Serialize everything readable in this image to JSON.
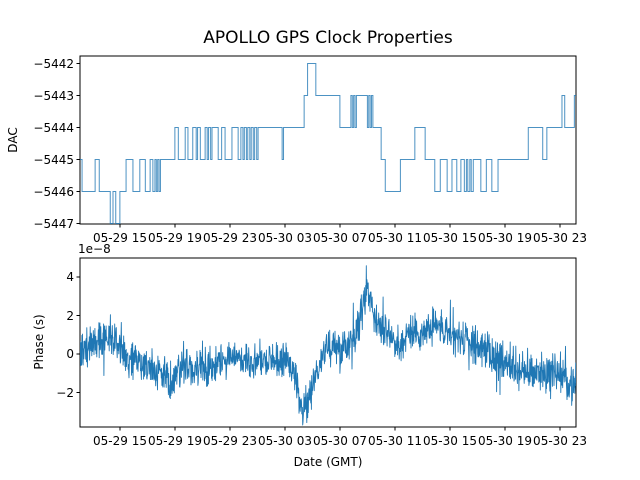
{
  "figure": {
    "title": "APOLLO GPS Clock Properties",
    "line_color": "#1f77b4",
    "background": "#ffffff"
  },
  "x_axis": {
    "label": "Date (GMT)",
    "tick_labels": [
      "05-29 15",
      "05-29 19",
      "05-29 23",
      "05-30 03",
      "05-30 07",
      "05-30 11",
      "05-30 15",
      "05-30 19",
      "05-30 23"
    ],
    "tick_hours": [
      2.909,
      6.909,
      10.909,
      14.909,
      18.909,
      22.909,
      26.909,
      30.909,
      34.909
    ],
    "range_hours": [
      0,
      36.07
    ],
    "hours_origin": "05-29 12:05"
  },
  "chart_data": [
    {
      "type": "line",
      "subtype": "step-post",
      "name": "dac",
      "ylabel": "DAC",
      "ytick_labels": [
        "−5442",
        "−5443",
        "−5444",
        "−5445",
        "−5446",
        "−5447"
      ],
      "yticks": [
        -5442,
        -5443,
        -5444,
        -5445,
        -5446,
        -5447
      ],
      "ylim": [
        -5447.02,
        -5441.77
      ],
      "steps": [
        [
          0,
          -5445
        ],
        [
          0.15,
          -5446
        ],
        [
          1.1,
          -5445
        ],
        [
          1.4,
          -5446
        ],
        [
          2.2,
          -5447
        ],
        [
          2.4,
          -5446
        ],
        [
          2.6,
          -5447
        ],
        [
          2.9,
          -5446
        ],
        [
          3.35,
          -5445
        ],
        [
          3.85,
          -5446
        ],
        [
          4.35,
          -5445
        ],
        [
          4.75,
          -5446
        ],
        [
          5.1,
          -5445
        ],
        [
          5.3,
          -5446
        ],
        [
          5.45,
          -5445
        ],
        [
          5.55,
          -5446
        ],
        [
          5.65,
          -5445
        ],
        [
          5.75,
          -5446
        ],
        [
          5.85,
          -5445
        ],
        [
          6.9,
          -5444
        ],
        [
          7.15,
          -5445
        ],
        [
          7.65,
          -5444
        ],
        [
          7.85,
          -5445
        ],
        [
          8.2,
          -5444
        ],
        [
          8.45,
          -5445
        ],
        [
          8.55,
          -5444
        ],
        [
          8.75,
          -5445
        ],
        [
          9.1,
          -5444
        ],
        [
          9.25,
          -5445
        ],
        [
          9.35,
          -5444
        ],
        [
          9.5,
          -5445
        ],
        [
          9.6,
          -5444
        ],
        [
          10.05,
          -5445
        ],
        [
          10.3,
          -5444
        ],
        [
          10.55,
          -5445
        ],
        [
          11.05,
          -5444
        ],
        [
          11.5,
          -5445
        ],
        [
          11.7,
          -5444
        ],
        [
          11.85,
          -5445
        ],
        [
          11.95,
          -5444
        ],
        [
          12.1,
          -5445
        ],
        [
          12.2,
          -5444
        ],
        [
          12.35,
          -5445
        ],
        [
          12.45,
          -5444
        ],
        [
          12.6,
          -5445
        ],
        [
          12.7,
          -5444
        ],
        [
          12.85,
          -5445
        ],
        [
          12.95,
          -5444
        ],
        [
          14.7,
          -5445
        ],
        [
          14.8,
          -5444
        ],
        [
          16.3,
          -5443
        ],
        [
          16.55,
          -5442
        ],
        [
          17.15,
          -5443
        ],
        [
          18.9,
          -5444
        ],
        [
          19.7,
          -5443
        ],
        [
          19.8,
          -5444
        ],
        [
          19.9,
          -5443
        ],
        [
          20.0,
          -5444
        ],
        [
          20.1,
          -5443
        ],
        [
          20.9,
          -5444
        ],
        [
          21.0,
          -5443
        ],
        [
          21.1,
          -5444
        ],
        [
          21.2,
          -5443
        ],
        [
          21.3,
          -5444
        ],
        [
          21.9,
          -5445
        ],
        [
          22.2,
          -5446
        ],
        [
          23.3,
          -5445
        ],
        [
          24.35,
          -5444
        ],
        [
          25.1,
          -5445
        ],
        [
          25.8,
          -5446
        ],
        [
          26.2,
          -5445
        ],
        [
          26.7,
          -5446
        ],
        [
          27.05,
          -5445
        ],
        [
          27.4,
          -5446
        ],
        [
          27.7,
          -5445
        ],
        [
          27.95,
          -5446
        ],
        [
          28.1,
          -5445
        ],
        [
          28.2,
          -5446
        ],
        [
          28.35,
          -5445
        ],
        [
          28.45,
          -5446
        ],
        [
          28.6,
          -5445
        ],
        [
          29.15,
          -5446
        ],
        [
          29.55,
          -5445
        ],
        [
          29.95,
          -5446
        ],
        [
          30.4,
          -5445
        ],
        [
          32.6,
          -5444
        ],
        [
          33.65,
          -5445
        ],
        [
          33.95,
          -5444
        ],
        [
          35.05,
          -5443
        ],
        [
          35.25,
          -5444
        ],
        [
          35.95,
          -5443
        ]
      ],
      "end_hour": 36.07
    },
    {
      "type": "line",
      "name": "phase",
      "ylabel": "Phase (s)",
      "xlabel": "Date (GMT)",
      "offset_text": "1e−8",
      "unit_scale": 1e-08,
      "ytick_labels": [
        "4",
        "2",
        "0",
        "−2"
      ],
      "yticks": [
        4,
        2,
        0,
        -2
      ],
      "ylim": [
        -3.79,
        4.99
      ],
      "trend": [
        [
          0,
          0.1
        ],
        [
          0.6,
          0.4
        ],
        [
          1.2,
          0.7
        ],
        [
          1.7,
          1.0
        ],
        [
          2.2,
          0.7
        ],
        [
          2.6,
          0.8
        ],
        [
          3.1,
          0.0
        ],
        [
          3.6,
          -0.5
        ],
        [
          4.2,
          -0.4
        ],
        [
          4.8,
          -0.6
        ],
        [
          5.4,
          -0.8
        ],
        [
          6.0,
          -1.0
        ],
        [
          6.4,
          -1.5
        ],
        [
          6.8,
          -1.1
        ],
        [
          7.4,
          -0.6
        ],
        [
          8.0,
          -0.7
        ],
        [
          8.6,
          -0.8
        ],
        [
          9.2,
          -0.6
        ],
        [
          9.8,
          -0.5
        ],
        [
          10.4,
          -0.35
        ],
        [
          11.0,
          -0.2
        ],
        [
          11.6,
          -0.15
        ],
        [
          12.2,
          -0.25
        ],
        [
          12.8,
          -0.4
        ],
        [
          13.4,
          -0.3
        ],
        [
          14.0,
          -0.35
        ],
        [
          14.6,
          -0.4
        ],
        [
          15.2,
          -0.5
        ],
        [
          15.6,
          -0.9
        ],
        [
          15.9,
          -2.3
        ],
        [
          16.3,
          -3.0
        ],
        [
          16.7,
          -2.2
        ],
        [
          17.1,
          -1.0
        ],
        [
          17.5,
          -0.4
        ],
        [
          17.9,
          0.3
        ],
        [
          18.4,
          0.3
        ],
        [
          18.9,
          0.45
        ],
        [
          19.4,
          0.6
        ],
        [
          19.9,
          1.0
        ],
        [
          20.3,
          1.6
        ],
        [
          20.6,
          2.5
        ],
        [
          20.85,
          3.7
        ],
        [
          21.1,
          2.7
        ],
        [
          21.5,
          1.8
        ],
        [
          21.9,
          1.5
        ],
        [
          22.5,
          0.8
        ],
        [
          23.0,
          0.7
        ],
        [
          23.4,
          0.5
        ],
        [
          23.9,
          1.2
        ],
        [
          24.4,
          1.1
        ],
        [
          24.9,
          1.2
        ],
        [
          25.4,
          1.2
        ],
        [
          25.9,
          1.6
        ],
        [
          26.3,
          1.2
        ],
        [
          27.0,
          0.9
        ],
        [
          27.6,
          0.8
        ],
        [
          28.2,
          0.6
        ],
        [
          28.8,
          0.4
        ],
        [
          29.4,
          0.2
        ],
        [
          30.0,
          -0.1
        ],
        [
          30.6,
          -0.5
        ],
        [
          31.2,
          -0.5
        ],
        [
          31.8,
          -0.7
        ],
        [
          32.3,
          -1.2
        ],
        [
          32.8,
          -0.8
        ],
        [
          33.4,
          -0.9
        ],
        [
          34.0,
          -1.0
        ],
        [
          34.6,
          -0.9
        ],
        [
          35.2,
          -1.3
        ],
        [
          35.7,
          -1.5
        ],
        [
          36.07,
          -1.9
        ]
      ],
      "noise_amplitude": 0.58,
      "n_points": 1600
    }
  ]
}
